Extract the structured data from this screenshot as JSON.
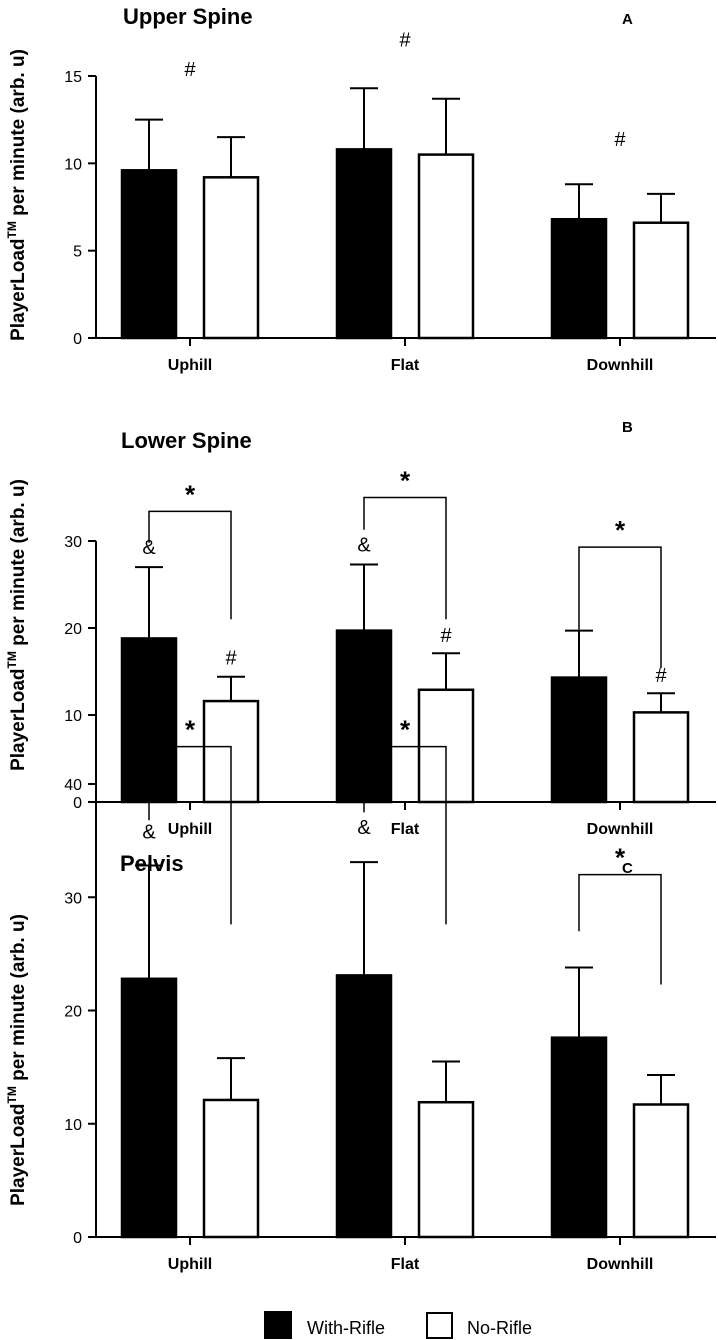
{
  "legend": {
    "with_rifle_label": "With-Rifle",
    "no_rifle_label": "No-Rifle",
    "with_rifle_color": "#000000",
    "no_rifle_color": "#ffffff"
  },
  "y_axis_label": {
    "main": "PlayerLoad",
    "superscript": "TM",
    "suffix": " per minute (arb. u)"
  },
  "chart_data": [
    {
      "type": "bar",
      "panel": "A",
      "title": "Upper Spine",
      "categories": [
        "Uphill",
        "Flat",
        "Downhill"
      ],
      "series": [
        {
          "name": "With-Rifle",
          "values": [
            9.6,
            10.8,
            6.8
          ],
          "sd": [
            2.9,
            3.5,
            2.0
          ]
        },
        {
          "name": "No-Rifle",
          "values": [
            9.2,
            10.5,
            6.6
          ],
          "sd": [
            2.3,
            3.2,
            1.65
          ]
        }
      ],
      "ylim": [
        0,
        15
      ],
      "yticks": [
        0,
        5,
        10,
        15
      ],
      "annotations": [
        {
          "text": "#",
          "category": 0,
          "position": "center",
          "value": 15.0
        },
        {
          "text": "#",
          "category": 1,
          "position": "center",
          "value": 16.7
        },
        {
          "text": "#",
          "category": 2,
          "position": "center",
          "value": 11.0
        }
      ],
      "brackets": []
    },
    {
      "type": "bar",
      "panel": "B",
      "title": "Lower Spine",
      "categories": [
        "Uphill",
        "Flat",
        "Downhill"
      ],
      "series": [
        {
          "name": "With-Rifle",
          "values": [
            18.8,
            19.7,
            14.3
          ],
          "sd": [
            8.2,
            7.6,
            5.4
          ]
        },
        {
          "name": "No-Rifle",
          "values": [
            11.6,
            12.9,
            10.3
          ],
          "sd": [
            2.8,
            4.2,
            2.2
          ]
        }
      ],
      "ylim": [
        0,
        30
      ],
      "yticks": [
        0,
        10,
        20,
        30
      ],
      "annotations": [
        {
          "text": "&",
          "category": 0,
          "position": "with",
          "value": 28.5
        },
        {
          "text": "#",
          "category": 0,
          "position": "no",
          "value": 15.8
        },
        {
          "text": "&",
          "category": 1,
          "position": "with",
          "value": 28.8
        },
        {
          "text": "#",
          "category": 1,
          "position": "no",
          "value": 18.4
        },
        {
          "text": "#",
          "category": 2,
          "position": "no",
          "value": 13.8
        }
      ],
      "brackets": [
        {
          "category": 0,
          "top": 33.4,
          "left_end": 29.8,
          "right_end": 21.0,
          "label": "*"
        },
        {
          "category": 1,
          "top": 35.0,
          "left_end": 31.3,
          "right_end": 21.0,
          "label": "*"
        },
        {
          "category": 2,
          "top": 29.3,
          "left_end": 19.8,
          "right_end": 15.4,
          "label": "*"
        }
      ]
    },
    {
      "type": "bar",
      "panel": "C",
      "title": "Pelvis",
      "categories": [
        "Uphill",
        "Flat",
        "Downhill"
      ],
      "series": [
        {
          "name": "With-Rifle",
          "values": [
            22.8,
            23.1,
            17.6
          ],
          "sd": [
            10.0,
            10.0,
            6.2
          ]
        },
        {
          "name": "No-Rifle",
          "values": [
            12.1,
            11.9,
            11.7
          ],
          "sd": [
            3.7,
            3.6,
            2.6
          ]
        }
      ],
      "ylim": [
        0,
        40
      ],
      "yticks": [
        0,
        10,
        20,
        30,
        40
      ],
      "annotations": [
        {
          "text": "&",
          "category": 0,
          "position": "with",
          "value": 35.2
        },
        {
          "text": "&",
          "category": 1,
          "position": "with",
          "value": 35.6
        }
      ],
      "brackets": [
        {
          "category": 0,
          "top": 43.3,
          "left_end": 36.8,
          "right_end": 27.6,
          "label": "*"
        },
        {
          "category": 1,
          "top": 43.3,
          "left_end": 37.5,
          "right_end": 27.6,
          "label": "*"
        },
        {
          "category": 2,
          "top": 32.0,
          "left_end": 27.0,
          "right_end": 22.3,
          "label": "*"
        }
      ]
    }
  ]
}
